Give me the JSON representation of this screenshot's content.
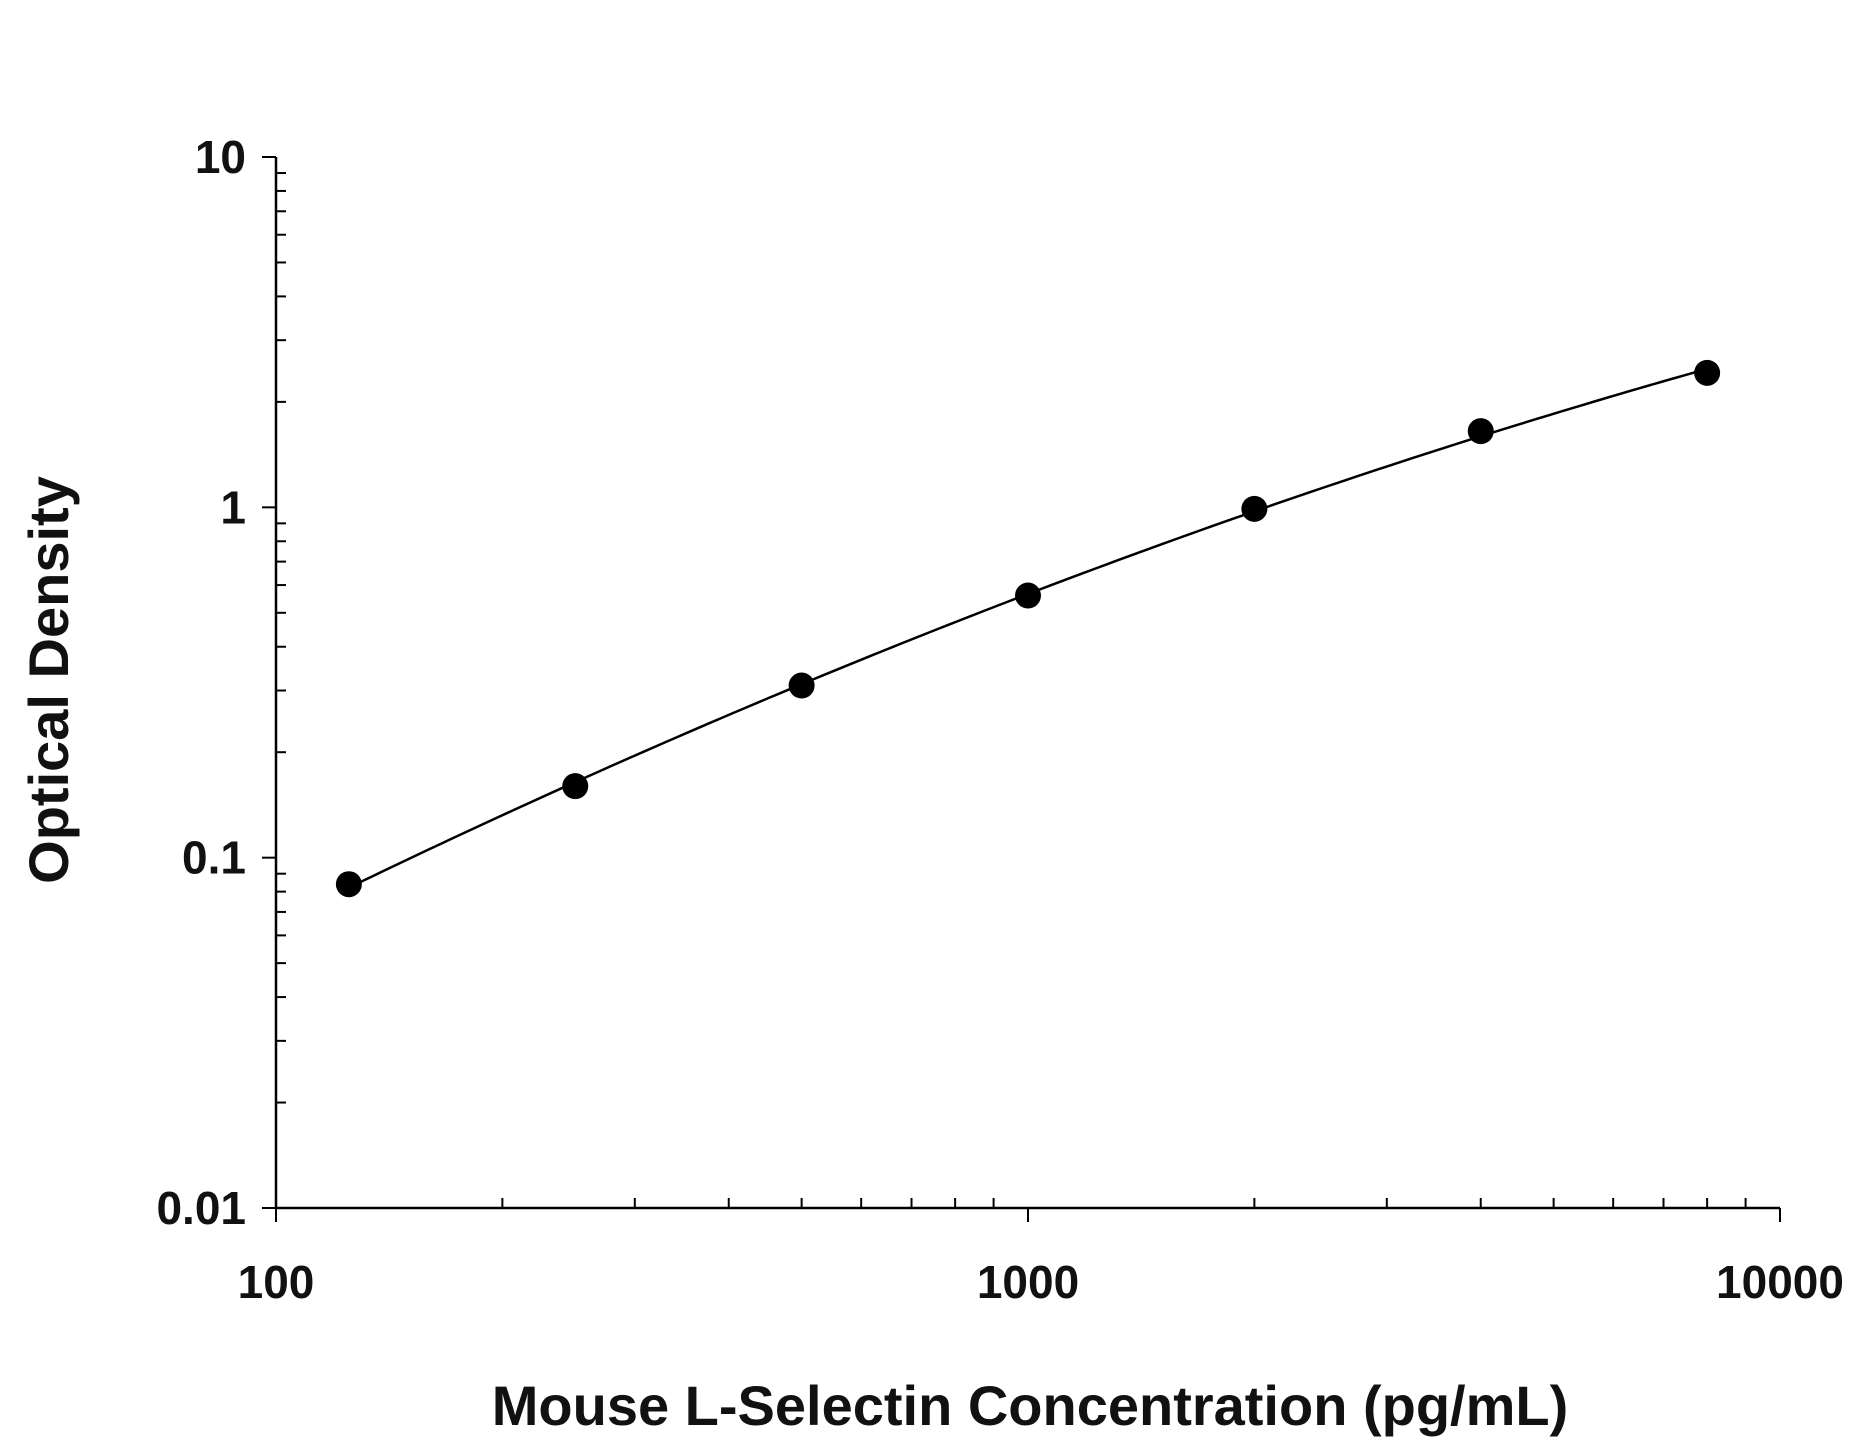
{
  "chart_data": {
    "type": "scatter",
    "title": "",
    "xlabel": "Mouse L-Selectin Concentration (pg/mL)",
    "ylabel": "Optical Density",
    "x_scale": "log",
    "y_scale": "log",
    "xlim": [
      100,
      10000
    ],
    "ylim": [
      0.01,
      10
    ],
    "x_ticks": [
      100,
      1000,
      10000
    ],
    "x_tick_labels": [
      "100",
      "1000",
      "10000"
    ],
    "y_ticks": [
      0.01,
      0.1,
      1,
      10
    ],
    "y_tick_labels": [
      "0.01",
      "0.1",
      "1",
      "10"
    ],
    "grid": false,
    "legend": "none",
    "series": [
      {
        "x": [
          125,
          250,
          500,
          1000,
          2000,
          4000,
          8000
        ],
        "y": [
          0.084,
          0.16,
          0.31,
          0.56,
          0.99,
          1.65,
          2.42
        ],
        "marker": "filled-circle",
        "fit_curve": true
      }
    ],
    "colors": {
      "marker": "#000000",
      "line": "#000000",
      "axis": "#000000"
    }
  }
}
